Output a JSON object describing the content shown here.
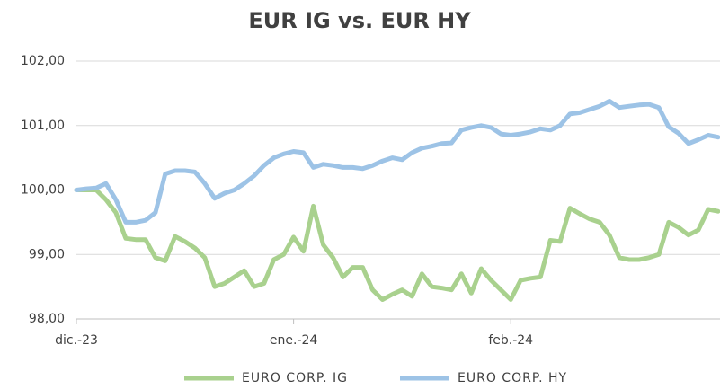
{
  "chart_data": {
    "type": "line",
    "title": "EUR IG vs. EUR HY",
    "categories": [
      "dic.-23",
      null,
      null,
      null,
      null,
      null,
      null,
      null,
      null,
      null,
      null,
      null,
      null,
      null,
      null,
      null,
      null,
      null,
      null,
      null,
      null,
      null,
      "ene.-24",
      null,
      null,
      null,
      null,
      null,
      null,
      null,
      null,
      null,
      null,
      null,
      null,
      null,
      null,
      null,
      null,
      null,
      null,
      null,
      null,
      null,
      "feb.-24",
      null,
      null,
      null,
      null,
      null,
      null,
      null,
      null,
      null,
      null,
      null,
      null,
      null,
      null,
      null,
      null,
      null,
      null,
      null,
      null,
      null
    ],
    "series": [
      {
        "name": "EURO CORP. IG",
        "color": "#a9d18e",
        "values": [
          100.0,
          100.0,
          100.0,
          99.85,
          99.65,
          99.25,
          99.23,
          99.23,
          98.95,
          98.9,
          99.28,
          99.2,
          99.1,
          98.95,
          98.5,
          98.55,
          98.65,
          98.75,
          98.5,
          98.55,
          98.92,
          99.0,
          99.27,
          99.05,
          99.75,
          99.15,
          98.95,
          98.65,
          98.8,
          98.8,
          98.45,
          98.3,
          98.38,
          98.45,
          98.35,
          98.7,
          98.5,
          98.48,
          98.45,
          98.7,
          98.4,
          98.78,
          98.6,
          98.45,
          98.3,
          98.6,
          98.63,
          98.65,
          99.22,
          99.2,
          99.72,
          99.63,
          99.55,
          99.5,
          99.3,
          98.95,
          98.92,
          98.92,
          98.95,
          99.0,
          99.5,
          99.42,
          99.3,
          99.38,
          99.7,
          99.67
        ]
      },
      {
        "name": "EURO CORP. HY",
        "color": "#9dc3e6",
        "values": [
          100.0,
          100.02,
          100.03,
          100.1,
          99.85,
          99.5,
          99.5,
          99.53,
          99.65,
          100.25,
          100.3,
          100.3,
          100.28,
          100.1,
          99.87,
          99.95,
          100.0,
          100.1,
          100.22,
          100.38,
          100.5,
          100.56,
          100.6,
          100.58,
          100.35,
          100.4,
          100.38,
          100.35,
          100.35,
          100.33,
          100.38,
          100.45,
          100.5,
          100.47,
          100.58,
          100.65,
          100.68,
          100.72,
          100.73,
          100.93,
          100.97,
          101.0,
          100.97,
          100.87,
          100.85,
          100.87,
          100.9,
          100.95,
          100.93,
          101.0,
          101.18,
          101.2,
          101.25,
          101.3,
          101.38,
          101.28,
          101.3,
          101.32,
          101.33,
          101.28,
          100.98,
          100.88,
          100.72,
          100.78,
          100.85,
          100.82
        ]
      }
    ],
    "ylim": [
      98,
      102
    ],
    "yticks": [
      {
        "value": 98,
        "label": "98,00"
      },
      {
        "value": 99,
        "label": "99,00"
      },
      {
        "value": 100,
        "label": "100,00"
      },
      {
        "value": 101,
        "label": "101,00"
      },
      {
        "value": 102,
        "label": "102,00"
      }
    ],
    "grid": true,
    "legend": "bottom"
  }
}
